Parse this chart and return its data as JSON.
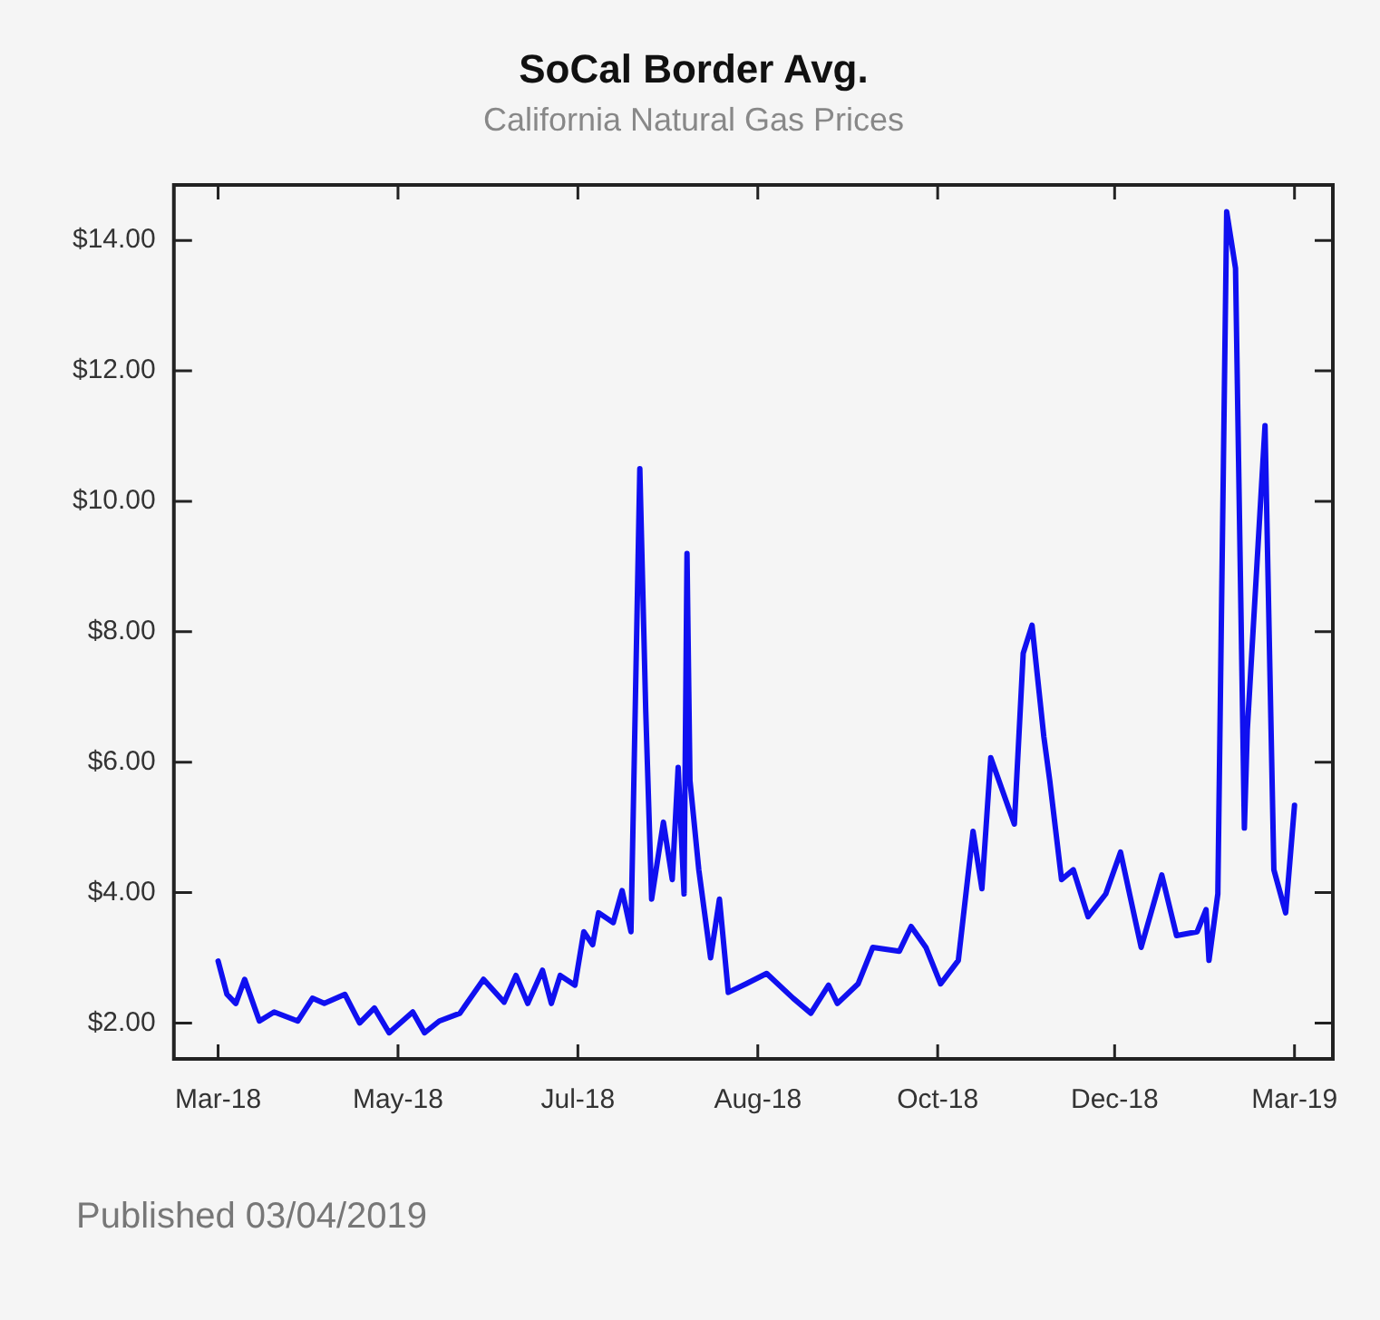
{
  "chart_data": {
    "type": "line",
    "title": "SoCal Border Avg.",
    "subtitle": "California Natural Gas Prices",
    "x": [
      "2018-03-01",
      "2018-03-04",
      "2018-03-07",
      "2018-03-10",
      "2018-03-15",
      "2018-03-20",
      "2018-03-28",
      "2018-04-02",
      "2018-04-06",
      "2018-04-13",
      "2018-04-18",
      "2018-04-23",
      "2018-04-28",
      "2018-05-06",
      "2018-05-10",
      "2018-05-15",
      "2018-05-22",
      "2018-05-30",
      "2018-06-06",
      "2018-06-10",
      "2018-06-14",
      "2018-06-19",
      "2018-06-22",
      "2018-06-25",
      "2018-06-30",
      "2018-07-03",
      "2018-07-06",
      "2018-07-08",
      "2018-07-13",
      "2018-07-16",
      "2018-07-19",
      "2018-07-22",
      "2018-07-24",
      "2018-07-26",
      "2018-07-30",
      "2018-08-02",
      "2018-08-04",
      "2018-08-06",
      "2018-08-07",
      "2018-08-08",
      "2018-08-11",
      "2018-08-15",
      "2018-08-18",
      "2018-08-21",
      "2018-08-27",
      "2018-09-03",
      "2018-09-12",
      "2018-09-18",
      "2018-09-24",
      "2018-09-27",
      "2018-10-04",
      "2018-10-09",
      "2018-10-18",
      "2018-10-22",
      "2018-10-27",
      "2018-11-01",
      "2018-11-07",
      "2018-11-12",
      "2018-11-15",
      "2018-11-18",
      "2018-11-26",
      "2018-11-29",
      "2018-12-02",
      "2018-12-06",
      "2018-12-08",
      "2018-12-12",
      "2018-12-16",
      "2018-12-21",
      "2018-12-27",
      "2019-01-01",
      "2019-01-08",
      "2019-01-15",
      "2019-01-20",
      "2019-01-27",
      "2019-01-30",
      "2019-01-31",
      "2019-02-03",
      "2019-02-06",
      "2019-02-09",
      "2019-02-12",
      "2019-02-13",
      "2019-02-19",
      "2019-02-22",
      "2019-02-26",
      "2019-03-01"
    ],
    "series": [
      {
        "color": "#1010f0",
        "values": [
          2.95,
          2.44,
          2.3,
          2.67,
          2.03,
          2.17,
          2.03,
          2.38,
          2.3,
          2.44,
          2.0,
          2.23,
          1.85,
          2.17,
          1.85,
          2.03,
          2.15,
          2.67,
          2.32,
          2.73,
          2.3,
          2.81,
          2.3,
          2.73,
          2.58,
          3.4,
          3.2,
          3.69,
          3.54,
          4.03,
          3.4,
          10.5,
          6.8,
          3.9,
          5.08,
          4.2,
          5.92,
          3.98,
          9.2,
          5.72,
          4.35,
          3.0,
          3.9,
          2.47,
          2.6,
          2.76,
          2.38,
          2.15,
          2.58,
          2.3,
          2.6,
          3.16,
          3.1,
          3.48,
          3.16,
          2.6,
          2.96,
          4.94,
          4.06,
          6.07,
          5.05,
          7.67,
          8.1,
          6.39,
          5.72,
          4.2,
          4.35,
          3.63,
          3.98,
          4.62,
          3.16,
          4.27,
          3.34,
          3.4,
          3.74,
          2.96,
          3.98,
          14.44,
          13.57,
          4.99,
          6.5,
          11.16,
          4.35,
          3.69,
          5.34
        ]
      }
    ],
    "xlim": [
      "2018-02-14",
      "2019-03-14"
    ],
    "xticks": [
      {
        "value": "2018-03-01",
        "label": "Mar-18"
      },
      {
        "value": "2018-05-01",
        "label": "May-18"
      },
      {
        "value": "2018-07-01",
        "label": "Jul-18"
      },
      {
        "value": "2018-08-31",
        "label": "Aug-18"
      },
      {
        "value": "2018-10-31",
        "label": "Oct-18"
      },
      {
        "value": "2018-12-30",
        "label": "Dec-18"
      },
      {
        "value": "2019-03-01",
        "label": "Mar-19"
      }
    ],
    "ylim": [
      1.45,
      14.85
    ],
    "yticks": [
      {
        "value": 2,
        "label": "$2.00"
      },
      {
        "value": 4,
        "label": "$4.00"
      },
      {
        "value": 6,
        "label": "$6.00"
      },
      {
        "value": 8,
        "label": "$8.00"
      },
      {
        "value": 10,
        "label": "$10.00"
      },
      {
        "value": 12,
        "label": "$12.00"
      },
      {
        "value": 14,
        "label": "$14.00"
      }
    ],
    "grid": false,
    "legend": false,
    "marker": "none",
    "line_style": "solid",
    "annotations": [
      "Published 03/04/2019"
    ]
  }
}
